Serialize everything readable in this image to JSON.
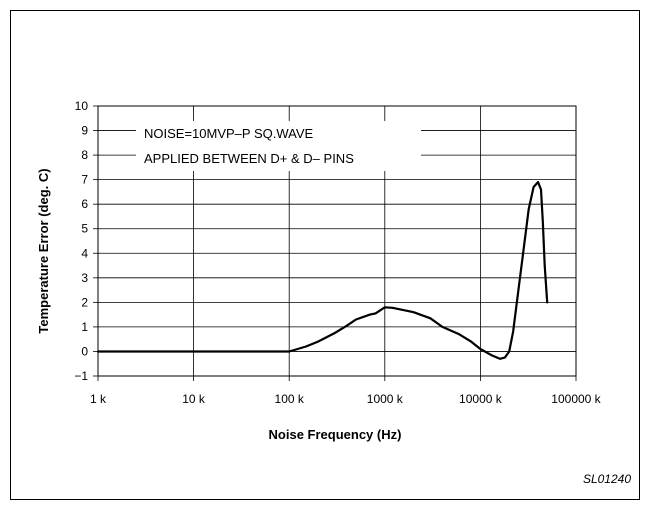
{
  "chart_data": {
    "type": "line",
    "xlabel": "Noise Frequency (Hz)",
    "ylabel": "Temperature Error (deg. C)",
    "x_scale": "log",
    "xlim": [
      1000,
      100000000
    ],
    "ylim": [
      -1,
      10
    ],
    "x_ticks": [
      1000,
      10000,
      100000,
      1000000,
      10000000,
      100000000
    ],
    "x_tick_labels": [
      "1 k",
      "10 k",
      "100 k",
      "1000 k",
      "10000 k",
      "100000 k"
    ],
    "y_ticks": [
      -1,
      0,
      1,
      2,
      3,
      4,
      5,
      6,
      7,
      8,
      9,
      10
    ],
    "y_tick_labels": [
      "−1",
      "0",
      "1",
      "2",
      "3",
      "4",
      "5",
      "6",
      "7",
      "8",
      "9",
      "10"
    ],
    "grid": true,
    "annotation_lines": [
      "NOISE=10MVP–P SQ.WAVE",
      "APPLIED BETWEEN D+ & D– PINS"
    ],
    "series": [
      {
        "color": "#000000",
        "x": [
          1000,
          10000,
          100000,
          150000,
          200000,
          300000,
          400000,
          500000,
          700000,
          800000,
          1000000,
          1200000,
          1500000,
          2000000,
          3000000,
          4000000,
          6000000,
          8000000,
          10000000,
          13000000,
          16000000,
          18000000,
          20000000,
          22000000,
          25000000,
          28000000,
          32000000,
          36000000,
          40000000,
          43000000,
          45000000,
          47000000,
          50000000
        ],
        "y": [
          0,
          0,
          0,
          0.2,
          0.4,
          0.75,
          1.05,
          1.3,
          1.5,
          1.55,
          1.8,
          1.78,
          1.7,
          1.6,
          1.35,
          1.0,
          0.7,
          0.4,
          0.1,
          -0.15,
          -0.3,
          -0.25,
          0,
          0.8,
          2.5,
          4.0,
          5.8,
          6.7,
          6.9,
          6.6,
          5.3,
          3.5,
          2.0
        ]
      }
    ]
  },
  "footer_code": "SL01240"
}
